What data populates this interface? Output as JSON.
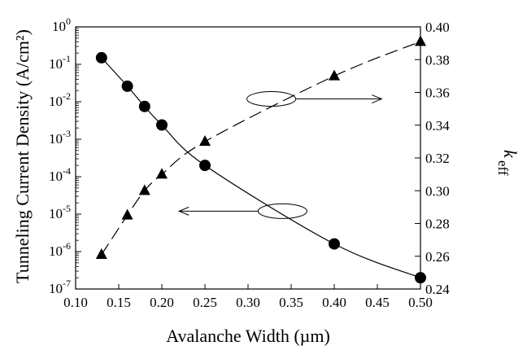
{
  "chart_data": {
    "type": "scatter",
    "xlabel": "Avalanche Width (µm)",
    "ylabel_left": "Tunneling Current Density (A/cm²)",
    "ylabel_right": "k_eff",
    "ylabel_right_main": "k",
    "ylabel_right_sub": "eff",
    "xlim": [
      0.1,
      0.5
    ],
    "ylim_left": [
      1e-07,
      1
    ],
    "ylim_right": [
      0.24,
      0.4
    ],
    "left_scale": "log",
    "grid": false,
    "legend": "none",
    "x_ticks": [
      "0.10",
      "0.15",
      "0.20",
      "0.25",
      "0.30",
      "0.35",
      "0.40",
      "0.45",
      "0.50"
    ],
    "left_ticks": [
      {
        "value": 1,
        "base": "10",
        "exp": "0"
      },
      {
        "value": 0.1,
        "base": "10",
        "exp": "-1"
      },
      {
        "value": 0.01,
        "base": "10",
        "exp": "-2"
      },
      {
        "value": 0.001,
        "base": "10",
        "exp": "-3"
      },
      {
        "value": 0.0001,
        "base": "10",
        "exp": "-4"
      },
      {
        "value": 1e-05,
        "base": "10",
        "exp": "-5"
      },
      {
        "value": 1e-06,
        "base": "10",
        "exp": "-6"
      },
      {
        "value": 1e-07,
        "base": "10",
        "exp": "-7"
      }
    ],
    "right_ticks": [
      "0.40",
      "0.38",
      "0.36",
      "0.34",
      "0.32",
      "0.30",
      "0.28",
      "0.26",
      "0.24"
    ],
    "series": [
      {
        "axis": "left",
        "marker": "circle",
        "line": "solid",
        "x": [
          0.13,
          0.16,
          0.18,
          0.2,
          0.25,
          0.4,
          0.5
        ],
        "y": [
          0.15,
          0.026,
          0.0075,
          0.0024,
          0.0002,
          1.6e-06,
          2e-07
        ]
      },
      {
        "axis": "right",
        "marker": "triangle",
        "line": "dashed",
        "x": [
          0.13,
          0.16,
          0.18,
          0.2,
          0.25,
          0.4,
          0.5
        ],
        "y": [
          0.261,
          0.285,
          0.3,
          0.31,
          0.33,
          0.37,
          0.391
        ]
      }
    ],
    "annotations": [
      {
        "type": "ellipse-arrow",
        "target_axis": "right",
        "direction": "right",
        "ellipse_center": [
          0.327,
          0.356
        ],
        "arrow_to": [
          0.455,
          0.356
        ]
      },
      {
        "type": "ellipse-arrow",
        "target_axis": "left",
        "direction": "left",
        "ellipse_center": [
          0.34,
          1.2e-05
        ],
        "arrow_to": [
          0.22,
          1.2e-05
        ]
      }
    ]
  }
}
